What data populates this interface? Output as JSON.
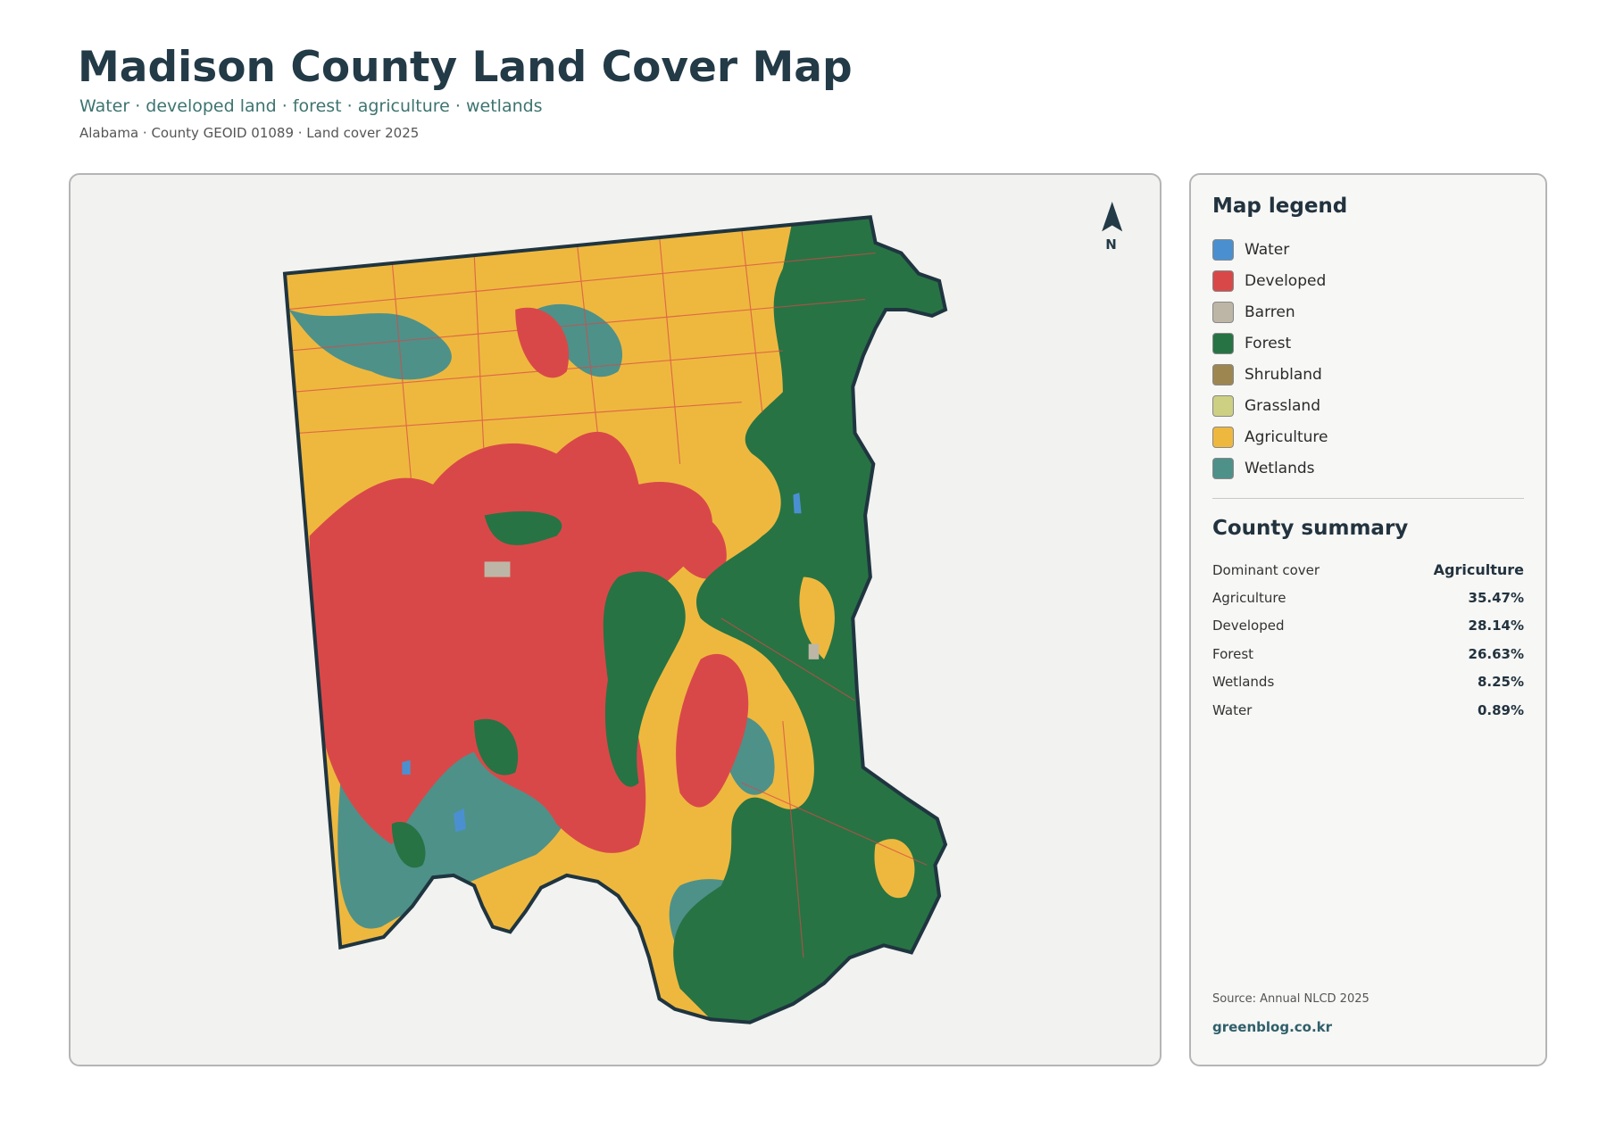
{
  "header": {
    "title": "Madison County Land Cover Map",
    "subtitle": "Water · developed land · forest · agriculture · wetlands",
    "meta": "Alabama · County GEOID 01089 · Land cover 2025"
  },
  "north_label": "N",
  "legend": {
    "title": "Map legend",
    "items": [
      {
        "label": "Water",
        "color": "#4a90d0"
      },
      {
        "label": "Developed",
        "color": "#d94848"
      },
      {
        "label": "Barren",
        "color": "#bdb6a6"
      },
      {
        "label": "Forest",
        "color": "#277344"
      },
      {
        "label": "Shrubland",
        "color": "#9e8651"
      },
      {
        "label": "Grassland",
        "color": "#cdd083"
      },
      {
        "label": "Agriculture",
        "color": "#eeb83f"
      },
      {
        "label": "Wetlands",
        "color": "#4e9189"
      }
    ]
  },
  "summary": {
    "title": "County summary",
    "rows": [
      {
        "label": "Dominant cover",
        "value": "Agriculture"
      },
      {
        "label": "Agriculture",
        "value": "35.47%"
      },
      {
        "label": "Developed",
        "value": "28.14%"
      },
      {
        "label": "Forest",
        "value": "26.63%"
      },
      {
        "label": "Wetlands",
        "value": "8.25%"
      },
      {
        "label": "Water",
        "value": "0.89%"
      }
    ]
  },
  "source": "Source: Annual NLCD 2025",
  "site": "greenblog.co.kr"
}
